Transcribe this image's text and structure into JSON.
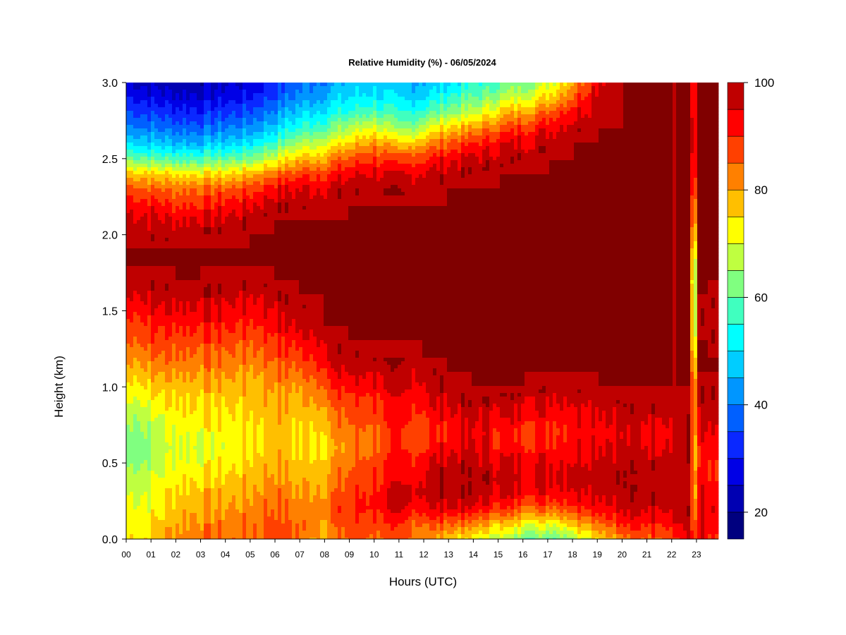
{
  "chart_data": {
    "type": "heatmap",
    "title": "Relative Humidity (%) - 06/05/2024",
    "xlabel": "Hours (UTC)",
    "ylabel": "Height (km)",
    "xlim": [
      0,
      24
    ],
    "ylim": [
      0,
      3
    ],
    "x_ticks": [
      "00",
      "01",
      "02",
      "03",
      "04",
      "05",
      "06",
      "07",
      "08",
      "09",
      "10",
      "11",
      "12",
      "13",
      "14",
      "15",
      "16",
      "17",
      "18",
      "19",
      "20",
      "21",
      "22",
      "23"
    ],
    "y_ticks": [
      "0.0",
      "0.5",
      "1.0",
      "1.5",
      "2.0",
      "2.5",
      "3.0"
    ],
    "colorbar": {
      "min": 15,
      "max": 100,
      "ticks": [
        "20",
        "40",
        "60",
        "80",
        "100"
      ],
      "levels": [
        15,
        20,
        25,
        30,
        35,
        40,
        45,
        50,
        55,
        60,
        65,
        70,
        75,
        80,
        85,
        90,
        95,
        100
      ],
      "colors": [
        "#00007f",
        "#0000b2",
        "#0000e6",
        "#0a28ff",
        "#0060ff",
        "#0096ff",
        "#00cdff",
        "#00ffff",
        "#40ffbf",
        "#80ff80",
        "#bfff40",
        "#ffff00",
        "#ffbf00",
        "#ff8000",
        "#ff4000",
        "#ff0000",
        "#bf0000",
        "#800000"
      ]
    },
    "profile_heights_km": [
      0.0,
      0.1,
      0.2,
      0.3,
      0.4,
      0.5,
      0.6,
      0.7,
      0.8,
      0.9,
      1.0,
      1.1,
      1.2,
      1.3,
      1.4,
      1.5,
      1.6,
      1.7,
      1.8,
      1.9,
      2.0,
      2.1,
      2.2,
      2.3,
      2.4,
      2.5,
      2.6,
      2.7,
      2.8,
      2.9,
      3.0
    ],
    "profiles": [
      {
        "hour": 0,
        "rh": [
          75,
          74,
          72,
          70,
          68,
          64,
          62,
          64,
          66,
          70,
          74,
          78,
          82,
          86,
          88,
          92,
          96,
          99,
          100,
          100,
          99,
          97,
          93,
          88,
          78,
          62,
          50,
          42,
          36,
          30,
          26
        ]
      },
      {
        "hour": 1,
        "rh": [
          75,
          74,
          72,
          70,
          69,
          66,
          64,
          66,
          68,
          72,
          76,
          80,
          84,
          88,
          90,
          94,
          97,
          99,
          100,
          100,
          98,
          96,
          92,
          86,
          76,
          60,
          48,
          40,
          34,
          28,
          24
        ]
      },
      {
        "hour": 2,
        "rh": [
          82,
          80,
          78,
          76,
          74,
          72,
          70,
          72,
          74,
          76,
          78,
          82,
          86,
          88,
          92,
          95,
          98,
          100,
          100,
          100,
          98,
          95,
          90,
          84,
          74,
          58,
          46,
          38,
          32,
          26,
          22
        ]
      },
      {
        "hour": 3,
        "rh": [
          84,
          82,
          80,
          78,
          75,
          72,
          70,
          72,
          74,
          76,
          78,
          82,
          84,
          88,
          92,
          95,
          98,
          100,
          100,
          100,
          99,
          96,
          90,
          85,
          74,
          58,
          46,
          38,
          32,
          26,
          22
        ]
      },
      {
        "hour": 4,
        "rh": [
          84,
          83,
          80,
          78,
          76,
          73,
          72,
          72,
          74,
          76,
          78,
          82,
          84,
          88,
          91,
          94,
          97,
          99,
          100,
          100,
          99,
          96,
          92,
          86,
          75,
          60,
          48,
          40,
          34,
          28,
          24
        ]
      },
      {
        "hour": 5,
        "rh": [
          84,
          84,
          82,
          80,
          78,
          76,
          74,
          74,
          76,
          77,
          78,
          80,
          84,
          86,
          90,
          93,
          96,
          99,
          100,
          100,
          100,
          98,
          94,
          88,
          78,
          62,
          50,
          42,
          36,
          30,
          26
        ]
      },
      {
        "hour": 6,
        "rh": [
          88,
          88,
          86,
          84,
          82,
          80,
          78,
          78,
          78,
          80,
          82,
          84,
          88,
          90,
          94,
          96,
          98,
          100,
          100,
          100,
          100,
          100,
          98,
          94,
          84,
          70,
          58,
          48,
          42,
          36,
          32
        ]
      },
      {
        "hour": 7,
        "rh": [
          84,
          84,
          82,
          80,
          78,
          76,
          74,
          74,
          76,
          78,
          80,
          84,
          88,
          92,
          96,
          98,
          100,
          100,
          100,
          100,
          100,
          100,
          98,
          95,
          88,
          78,
          66,
          56,
          48,
          42,
          38
        ]
      },
      {
        "hour": 8,
        "rh": [
          80,
          82,
          84,
          82,
          80,
          78,
          76,
          78,
          80,
          84,
          88,
          92,
          96,
          98,
          100,
          100,
          100,
          100,
          100,
          100,
          100,
          100,
          99,
          96,
          90,
          80,
          70,
          60,
          52,
          46,
          42
        ]
      },
      {
        "hour": 9,
        "rh": [
          86,
          88,
          90,
          88,
          86,
          84,
          82,
          84,
          86,
          88,
          92,
          96,
          98,
          100,
          100,
          100,
          100,
          100,
          100,
          100,
          100,
          100,
          100,
          98,
          94,
          86,
          76,
          66,
          56,
          50,
          46
        ]
      },
      {
        "hour": 10,
        "rh": [
          86,
          88,
          92,
          92,
          90,
          88,
          86,
          86,
          88,
          90,
          94,
          97,
          99,
          100,
          100,
          100,
          100,
          100,
          100,
          100,
          100,
          100,
          100,
          99,
          96,
          90,
          82,
          72,
          60,
          52,
          48
        ]
      },
      {
        "hour": 11,
        "rh": [
          86,
          88,
          94,
          95,
          92,
          90,
          88,
          88,
          90,
          92,
          94,
          97,
          99,
          100,
          100,
          100,
          100,
          100,
          100,
          100,
          100,
          100,
          100,
          98,
          94,
          86,
          74,
          62,
          54,
          48,
          44
        ]
      },
      {
        "hour": 12,
        "rh": [
          82,
          86,
          94,
          97,
          96,
          94,
          90,
          88,
          90,
          94,
          96,
          98,
          100,
          100,
          100,
          100,
          100,
          100,
          100,
          100,
          100,
          100,
          100,
          99,
          96,
          90,
          80,
          68,
          58,
          50,
          46
        ]
      },
      {
        "hour": 13,
        "rh": [
          78,
          86,
          96,
          99,
          100,
          98,
          94,
          92,
          94,
          97,
          99,
          100,
          100,
          100,
          100,
          100,
          100,
          100,
          100,
          100,
          100,
          100,
          100,
          100,
          98,
          94,
          86,
          76,
          64,
          56,
          50
        ]
      },
      {
        "hour": 14,
        "rh": [
          72,
          82,
          94,
          98,
          99,
          97,
          95,
          94,
          96,
          99,
          100,
          100,
          100,
          100,
          100,
          100,
          100,
          100,
          100,
          100,
          100,
          100,
          100,
          100,
          99,
          96,
          90,
          80,
          68,
          60,
          54
        ]
      },
      {
        "hour": 15,
        "rh": [
          68,
          78,
          90,
          96,
          98,
          96,
          92,
          92,
          94,
          98,
          100,
          100,
          100,
          100,
          100,
          100,
          100,
          100,
          100,
          100,
          100,
          100,
          100,
          100,
          100,
          98,
          94,
          86,
          76,
          66,
          58
        ]
      },
      {
        "hour": 16,
        "rh": [
          62,
          74,
          86,
          94,
          97,
          95,
          92,
          90,
          94,
          97,
          100,
          100,
          100,
          100,
          100,
          100,
          100,
          100,
          100,
          100,
          100,
          100,
          100,
          100,
          100,
          99,
          96,
          90,
          80,
          70,
          62
        ]
      },
      {
        "hour": 17,
        "rh": [
          60,
          72,
          86,
          94,
          97,
          95,
          92,
          90,
          93,
          96,
          99,
          100,
          100,
          100,
          100,
          100,
          100,
          100,
          100,
          100,
          100,
          100,
          100,
          100,
          100,
          100,
          98,
          94,
          86,
          76,
          68
        ]
      },
      {
        "hour": 18,
        "rh": [
          66,
          78,
          90,
          96,
          98,
          96,
          94,
          92,
          94,
          97,
          99,
          100,
          100,
          100,
          100,
          100,
          100,
          100,
          100,
          100,
          100,
          100,
          100,
          100,
          100,
          100,
          100,
          98,
          94,
          86,
          80
        ]
      },
      {
        "hour": 19,
        "rh": [
          76,
          86,
          94,
          98,
          99,
          98,
          96,
          94,
          96,
          98,
          100,
          100,
          100,
          100,
          100,
          100,
          100,
          100,
          100,
          100,
          100,
          100,
          100,
          100,
          100,
          100,
          100,
          100,
          99,
          98,
          96
        ]
      },
      {
        "hour": 20,
        "rh": [
          82,
          90,
          96,
          98,
          99,
          98,
          96,
          95,
          97,
          99,
          100,
          100,
          100,
          100,
          100,
          100,
          100,
          100,
          100,
          100,
          100,
          100,
          100,
          100,
          100,
          100,
          100,
          100,
          100,
          100,
          100
        ]
      },
      {
        "hour": 21,
        "rh": [
          86,
          92,
          97,
          99,
          100,
          98,
          96,
          95,
          97,
          99,
          100,
          100,
          100,
          100,
          100,
          100,
          100,
          100,
          100,
          100,
          100,
          100,
          100,
          100,
          100,
          100,
          100,
          100,
          100,
          100,
          100
        ]
      },
      {
        "hour": 22,
        "rh": [
          88,
          94,
          98,
          99,
          100,
          99,
          97,
          96,
          98,
          99,
          100,
          100,
          100,
          100,
          100,
          100,
          100,
          100,
          100,
          100,
          100,
          100,
          100,
          100,
          100,
          100,
          100,
          100,
          100,
          100,
          100
        ]
      },
      {
        "hour": 22.75,
        "rh": [
          94,
          97,
          99,
          100,
          100,
          99,
          98,
          98,
          99,
          100,
          100,
          100,
          100,
          100,
          100,
          100,
          100,
          100,
          100,
          100,
          100,
          100,
          100,
          100,
          100,
          100,
          100,
          100,
          100,
          100,
          100
        ]
      },
      {
        "hour": 22.9,
        "rh": [
          86,
          80,
          72,
          70,
          72,
          72,
          70,
          72,
          74,
          72,
          70,
          66,
          58,
          52,
          48,
          46,
          45,
          44,
          48,
          55,
          62,
          70,
          74,
          80,
          85,
          88,
          90,
          90,
          88,
          88,
          88
        ]
      },
      {
        "hour": 23.05,
        "rh": [
          96,
          96,
          96,
          95,
          94,
          92,
          92,
          94,
          96,
          98,
          99,
          100,
          100,
          100,
          100,
          100,
          100,
          100,
          100,
          100,
          100,
          100,
          100,
          100,
          100,
          100,
          100,
          100,
          100,
          100,
          100
        ]
      },
      {
        "hour": 23.4,
        "rh": [
          90,
          92,
          94,
          92,
          90,
          90,
          92,
          94,
          96,
          98,
          99,
          100,
          100,
          100,
          98,
          98,
          100,
          100,
          100,
          100,
          100,
          100,
          100,
          100,
          100,
          100,
          100,
          100,
          100,
          100,
          100
        ]
      },
      {
        "hour": 23.9,
        "rh": [
          88,
          90,
          92,
          90,
          88,
          88,
          90,
          92,
          95,
          97,
          99,
          100,
          100,
          98,
          96,
          96,
          99,
          100,
          100,
          100,
          100,
          100,
          100,
          100,
          100,
          100,
          100,
          100,
          100,
          100,
          100
        ]
      }
    ]
  }
}
